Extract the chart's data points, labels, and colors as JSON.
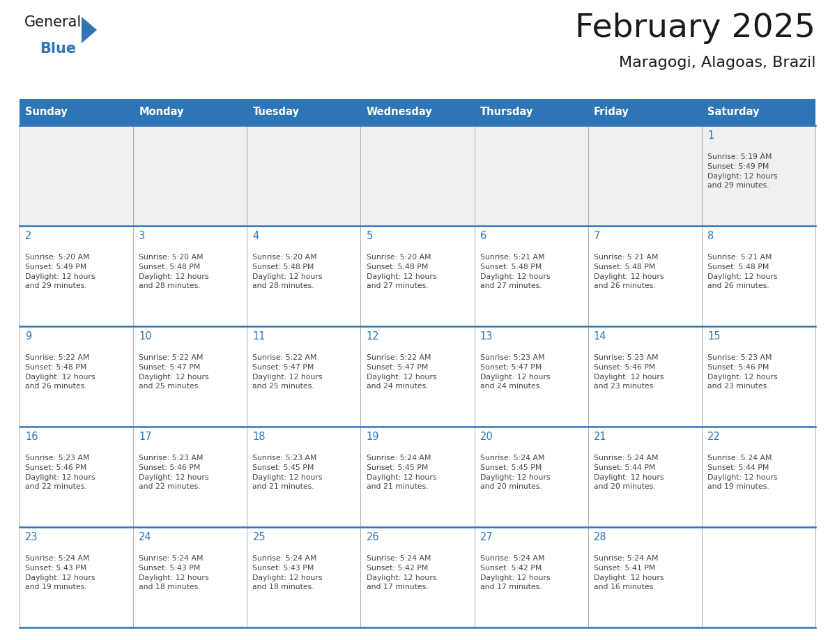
{
  "title": "February 2025",
  "subtitle": "Maragogi, Alagoas, Brazil",
  "header_color": "#2E75B6",
  "header_text_color": "#FFFFFF",
  "cell_bg_color": "#FFFFFF",
  "row1_bg_color": "#F0F0F0",
  "border_color": "#2E75B6",
  "cell_border_color": "#AAAAAA",
  "title_color": "#1A1A1A",
  "subtitle_color": "#1A1A1A",
  "day_number_color": "#2E75B6",
  "cell_text_color": "#444444",
  "days_of_week": [
    "Sunday",
    "Monday",
    "Tuesday",
    "Wednesday",
    "Thursday",
    "Friday",
    "Saturday"
  ],
  "weeks": [
    [
      {
        "day": 0,
        "text": ""
      },
      {
        "day": 0,
        "text": ""
      },
      {
        "day": 0,
        "text": ""
      },
      {
        "day": 0,
        "text": ""
      },
      {
        "day": 0,
        "text": ""
      },
      {
        "day": 0,
        "text": ""
      },
      {
        "day": 1,
        "text": "Sunrise: 5:19 AM\nSunset: 5:49 PM\nDaylight: 12 hours\nand 29 minutes."
      }
    ],
    [
      {
        "day": 2,
        "text": "Sunrise: 5:20 AM\nSunset: 5:49 PM\nDaylight: 12 hours\nand 29 minutes."
      },
      {
        "day": 3,
        "text": "Sunrise: 5:20 AM\nSunset: 5:48 PM\nDaylight: 12 hours\nand 28 minutes."
      },
      {
        "day": 4,
        "text": "Sunrise: 5:20 AM\nSunset: 5:48 PM\nDaylight: 12 hours\nand 28 minutes."
      },
      {
        "day": 5,
        "text": "Sunrise: 5:20 AM\nSunset: 5:48 PM\nDaylight: 12 hours\nand 27 minutes."
      },
      {
        "day": 6,
        "text": "Sunrise: 5:21 AM\nSunset: 5:48 PM\nDaylight: 12 hours\nand 27 minutes."
      },
      {
        "day": 7,
        "text": "Sunrise: 5:21 AM\nSunset: 5:48 PM\nDaylight: 12 hours\nand 26 minutes."
      },
      {
        "day": 8,
        "text": "Sunrise: 5:21 AM\nSunset: 5:48 PM\nDaylight: 12 hours\nand 26 minutes."
      }
    ],
    [
      {
        "day": 9,
        "text": "Sunrise: 5:22 AM\nSunset: 5:48 PM\nDaylight: 12 hours\nand 26 minutes."
      },
      {
        "day": 10,
        "text": "Sunrise: 5:22 AM\nSunset: 5:47 PM\nDaylight: 12 hours\nand 25 minutes."
      },
      {
        "day": 11,
        "text": "Sunrise: 5:22 AM\nSunset: 5:47 PM\nDaylight: 12 hours\nand 25 minutes."
      },
      {
        "day": 12,
        "text": "Sunrise: 5:22 AM\nSunset: 5:47 PM\nDaylight: 12 hours\nand 24 minutes."
      },
      {
        "day": 13,
        "text": "Sunrise: 5:23 AM\nSunset: 5:47 PM\nDaylight: 12 hours\nand 24 minutes."
      },
      {
        "day": 14,
        "text": "Sunrise: 5:23 AM\nSunset: 5:46 PM\nDaylight: 12 hours\nand 23 minutes."
      },
      {
        "day": 15,
        "text": "Sunrise: 5:23 AM\nSunset: 5:46 PM\nDaylight: 12 hours\nand 23 minutes."
      }
    ],
    [
      {
        "day": 16,
        "text": "Sunrise: 5:23 AM\nSunset: 5:46 PM\nDaylight: 12 hours\nand 22 minutes."
      },
      {
        "day": 17,
        "text": "Sunrise: 5:23 AM\nSunset: 5:46 PM\nDaylight: 12 hours\nand 22 minutes."
      },
      {
        "day": 18,
        "text": "Sunrise: 5:23 AM\nSunset: 5:45 PM\nDaylight: 12 hours\nand 21 minutes."
      },
      {
        "day": 19,
        "text": "Sunrise: 5:24 AM\nSunset: 5:45 PM\nDaylight: 12 hours\nand 21 minutes."
      },
      {
        "day": 20,
        "text": "Sunrise: 5:24 AM\nSunset: 5:45 PM\nDaylight: 12 hours\nand 20 minutes."
      },
      {
        "day": 21,
        "text": "Sunrise: 5:24 AM\nSunset: 5:44 PM\nDaylight: 12 hours\nand 20 minutes."
      },
      {
        "day": 22,
        "text": "Sunrise: 5:24 AM\nSunset: 5:44 PM\nDaylight: 12 hours\nand 19 minutes."
      }
    ],
    [
      {
        "day": 23,
        "text": "Sunrise: 5:24 AM\nSunset: 5:43 PM\nDaylight: 12 hours\nand 19 minutes."
      },
      {
        "day": 24,
        "text": "Sunrise: 5:24 AM\nSunset: 5:43 PM\nDaylight: 12 hours\nand 18 minutes."
      },
      {
        "day": 25,
        "text": "Sunrise: 5:24 AM\nSunset: 5:43 PM\nDaylight: 12 hours\nand 18 minutes."
      },
      {
        "day": 26,
        "text": "Sunrise: 5:24 AM\nSunset: 5:42 PM\nDaylight: 12 hours\nand 17 minutes."
      },
      {
        "day": 27,
        "text": "Sunrise: 5:24 AM\nSunset: 5:42 PM\nDaylight: 12 hours\nand 17 minutes."
      },
      {
        "day": 28,
        "text": "Sunrise: 5:24 AM\nSunset: 5:41 PM\nDaylight: 12 hours\nand 16 minutes."
      },
      {
        "day": 0,
        "text": ""
      }
    ]
  ],
  "logo_text_general": "General",
  "logo_text_blue": "Blue",
  "logo_triangle_color": "#2E75B6",
  "fig_width": 11.88,
  "fig_height": 9.18,
  "dpi": 100
}
